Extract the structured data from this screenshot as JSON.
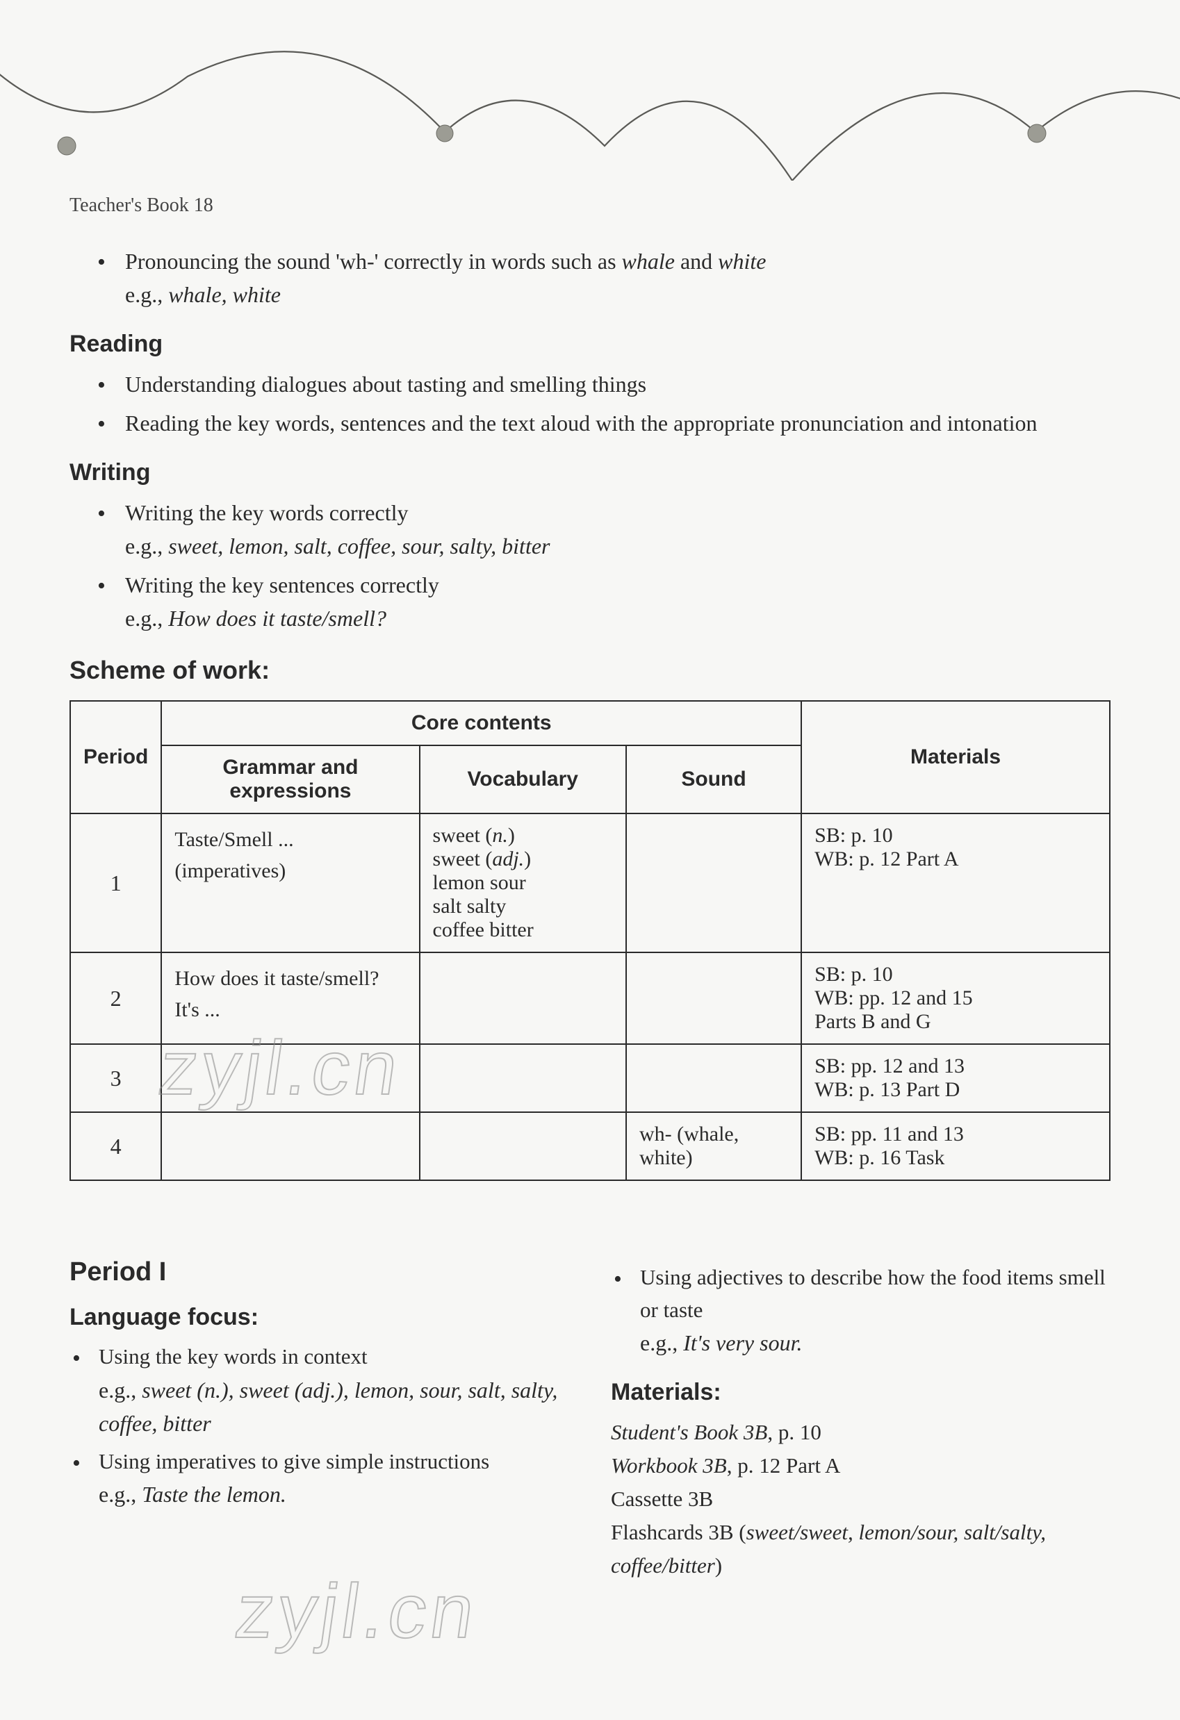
{
  "header": {
    "label": "Teacher's Book 18"
  },
  "decoration": {
    "scallop_color": "#5a5a56",
    "dot_fill": "#9c9c94",
    "dot_stroke": "#6b6b64"
  },
  "top_sections": [
    {
      "heading": null,
      "items": [
        {
          "segments": [
            {
              "t": "Pronouncing the sound 'wh-' correctly in words such as ",
              "i": false
            },
            {
              "t": "whale",
              "i": true
            },
            {
              "t": " and ",
              "i": false
            },
            {
              "t": "white",
              "i": true
            }
          ],
          "eg_segments": [
            {
              "t": "e.g., ",
              "i": false
            },
            {
              "t": "whale, white",
              "i": true
            }
          ]
        }
      ]
    },
    {
      "heading": "Reading",
      "items": [
        {
          "segments": [
            {
              "t": "Understanding dialogues about tasting and smelling things",
              "i": false
            }
          ],
          "eg_segments": null
        },
        {
          "segments": [
            {
              "t": "Reading the key words, sentences and the text aloud with the appropriate pronunciation and intonation",
              "i": false
            }
          ],
          "eg_segments": null
        }
      ]
    },
    {
      "heading": "Writing",
      "items": [
        {
          "segments": [
            {
              "t": "Writing the key words correctly",
              "i": false
            }
          ],
          "eg_segments": [
            {
              "t": "e.g., ",
              "i": false
            },
            {
              "t": "sweet, lemon, salt, coffee, sour, salty, bitter",
              "i": true
            }
          ]
        },
        {
          "segments": [
            {
              "t": "Writing the key sentences correctly",
              "i": false
            }
          ],
          "eg_segments": [
            {
              "t": "e.g., ",
              "i": false
            },
            {
              "t": "How does it taste/smell?",
              "i": true
            }
          ]
        }
      ]
    }
  ],
  "scheme": {
    "heading": "Scheme of work:",
    "columns": {
      "period": "Period",
      "core": "Core contents",
      "grammar": "Grammar and expressions",
      "vocab": "Vocabulary",
      "sound": "Sound",
      "materials": "Materials"
    },
    "col_widths": {
      "period": "8%",
      "grammar": "25%",
      "vocab": "20%",
      "sound": "17%",
      "materials": "30%"
    },
    "rows": [
      {
        "period": "1",
        "grammar_segments": [
          {
            "t": "Taste/Smell ...",
            "i": false
          },
          {
            "t": "(imperatives)",
            "i": false
          }
        ],
        "vocab_segments": [
          {
            "t": "sweet (",
            "i": false
          },
          {
            "t": "n.",
            "i": true
          },
          {
            "t": ")",
            "i": false
          },
          {
            "br": true
          },
          {
            "t": "sweet (",
            "i": false
          },
          {
            "t": "adj.",
            "i": true
          },
          {
            "t": ")",
            "i": false
          },
          {
            "br": true
          },
          {
            "t": "lemon   sour",
            "i": false
          },
          {
            "br": true
          },
          {
            "t": "salt   salty",
            "i": false
          },
          {
            "br": true
          },
          {
            "t": "coffee   bitter",
            "i": false
          }
        ],
        "sound_segments": [],
        "materials_segments": [
          {
            "t": "SB: p. 10",
            "i": false
          },
          {
            "br": true
          },
          {
            "t": "WB: p. 12 Part A",
            "i": false
          }
        ]
      },
      {
        "period": "2",
        "grammar_segments": [
          {
            "t": "How does it taste/smell?",
            "i": false
          },
          {
            "t": "It's ...",
            "i": false
          }
        ],
        "vocab_segments": [],
        "sound_segments": [],
        "materials_segments": [
          {
            "t": "SB: p. 10",
            "i": false
          },
          {
            "br": true
          },
          {
            "t": "WB: pp. 12 and 15",
            "i": false
          },
          {
            "br": true
          },
          {
            "t": "Parts B and G",
            "i": false
          }
        ]
      },
      {
        "period": "3",
        "grammar_segments": [],
        "vocab_segments": [],
        "sound_segments": [],
        "materials_segments": [
          {
            "t": "SB: pp. 12 and 13",
            "i": false
          },
          {
            "br": true
          },
          {
            "t": "WB: p. 13 Part D",
            "i": false
          }
        ]
      },
      {
        "period": "4",
        "grammar_segments": [],
        "vocab_segments": [],
        "sound_segments": [
          {
            "t": "wh- (whale, white)",
            "i": false
          }
        ],
        "materials_segments": [
          {
            "t": "SB: pp. 11 and 13",
            "i": false
          },
          {
            "br": true
          },
          {
            "t": "WB: p. 16 Task",
            "i": false
          }
        ]
      }
    ]
  },
  "period1": {
    "title": "Period I",
    "left": {
      "heading": "Language focus:",
      "items": [
        {
          "segments": [
            {
              "t": "Using the key words in context",
              "i": false
            }
          ],
          "eg_segments": [
            {
              "t": "e.g., ",
              "i": false
            },
            {
              "t": "sweet (n.), sweet (adj.), lemon, sour, salt, salty, coffee, bitter",
              "i": true
            }
          ]
        },
        {
          "segments": [
            {
              "t": "Using imperatives to give simple instructions",
              "i": false
            }
          ],
          "eg_segments": [
            {
              "t": "e.g., ",
              "i": false
            },
            {
              "t": "Taste the lemon.",
              "i": true
            }
          ]
        }
      ]
    },
    "right": {
      "continue_items": [
        {
          "segments": [
            {
              "t": "Using adjectives to describe how the food items smell or taste",
              "i": false
            }
          ],
          "eg_segments": [
            {
              "t": "e.g., ",
              "i": false
            },
            {
              "t": "It's very sour.",
              "i": true
            }
          ]
        }
      ],
      "materials_heading": "Materials:",
      "materials_lines": [
        [
          {
            "t": "Student's Book 3B",
            "i": true
          },
          {
            "t": ", p. 10",
            "i": false
          }
        ],
        [
          {
            "t": "Workbook 3B",
            "i": true
          },
          {
            "t": ", p. 12 Part A",
            "i": false
          }
        ],
        [
          {
            "t": "Cassette 3B",
            "i": false
          }
        ],
        [
          {
            "t": "Flashcards 3B (",
            "i": false
          },
          {
            "t": "sweet/sweet, lemon/sour, salt/salty, coffee/bitter",
            "i": true
          },
          {
            "t": ")",
            "i": false
          }
        ]
      ]
    }
  },
  "watermarks": {
    "text": "zyjl.cn"
  }
}
